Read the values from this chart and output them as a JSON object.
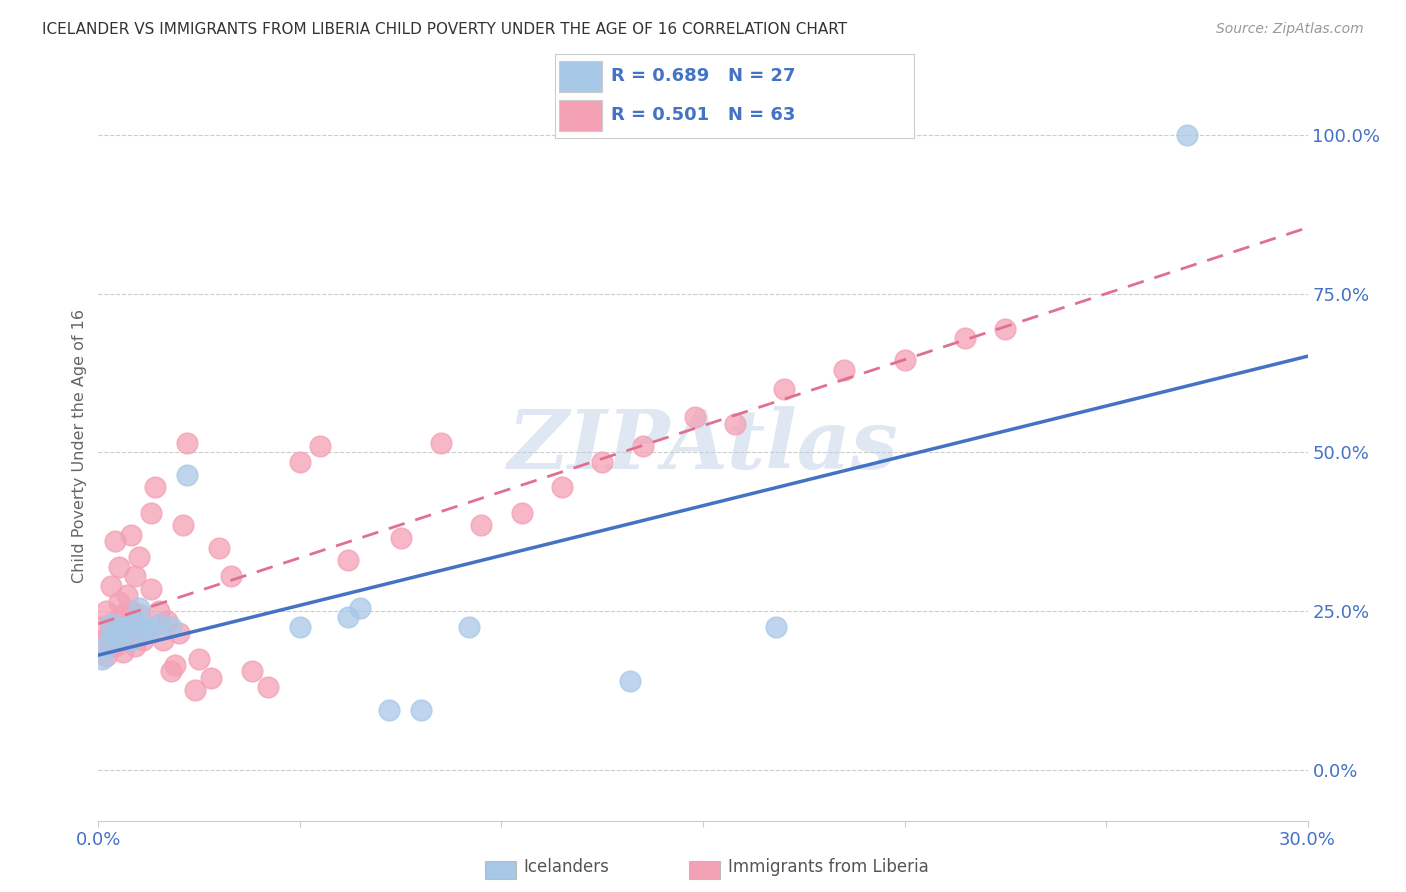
{
  "title": "ICELANDER VS IMMIGRANTS FROM LIBERIA CHILD POVERTY UNDER THE AGE OF 16 CORRELATION CHART",
  "source": "Source: ZipAtlas.com",
  "ylabel": "Child Poverty Under the Age of 16",
  "ytick_values": [
    0.0,
    0.25,
    0.5,
    0.75,
    1.0
  ],
  "ytick_labels": [
    "0.0%",
    "25.0%",
    "50.0%",
    "75.0%",
    "100.0%"
  ],
  "xlim": [
    0.0,
    0.3
  ],
  "ylim": [
    -0.08,
    1.1
  ],
  "icelander_color": "#a8c8e8",
  "liberia_color": "#f4a0b5",
  "icelander_line_color": "#4472c4",
  "liberia_line_color": "#e07090",
  "R_icelander": 0.689,
  "N_icelander": 27,
  "R_liberia": 0.501,
  "N_liberia": 63,
  "legend_label_icelanders": "Icelanders",
  "legend_label_liberia": "Immigrants from Liberia",
  "icelander_x": [
    0.001,
    0.002,
    0.003,
    0.003,
    0.004,
    0.005,
    0.005,
    0.006,
    0.007,
    0.008,
    0.009,
    0.01,
    0.011,
    0.012,
    0.013,
    0.015,
    0.018,
    0.022,
    0.05,
    0.062,
    0.065,
    0.072,
    0.08,
    0.092,
    0.132,
    0.168,
    0.27
  ],
  "icelander_y": [
    0.175,
    0.195,
    0.21,
    0.23,
    0.215,
    0.225,
    0.205,
    0.22,
    0.225,
    0.205,
    0.235,
    0.255,
    0.215,
    0.225,
    0.22,
    0.23,
    0.225,
    0.465,
    0.225,
    0.24,
    0.255,
    0.095,
    0.095,
    0.225,
    0.14,
    0.225,
    1.0
  ],
  "liberia_x": [
    0.001,
    0.001,
    0.002,
    0.002,
    0.003,
    0.003,
    0.003,
    0.004,
    0.004,
    0.004,
    0.005,
    0.005,
    0.005,
    0.005,
    0.006,
    0.006,
    0.007,
    0.007,
    0.008,
    0.008,
    0.008,
    0.009,
    0.009,
    0.01,
    0.01,
    0.01,
    0.011,
    0.012,
    0.013,
    0.013,
    0.014,
    0.015,
    0.016,
    0.017,
    0.018,
    0.019,
    0.02,
    0.021,
    0.022,
    0.024,
    0.025,
    0.028,
    0.03,
    0.033,
    0.038,
    0.042,
    0.05,
    0.055,
    0.062,
    0.075,
    0.085,
    0.095,
    0.105,
    0.115,
    0.125,
    0.135,
    0.148,
    0.158,
    0.17,
    0.185,
    0.2,
    0.215,
    0.225
  ],
  "liberia_y": [
    0.205,
    0.225,
    0.18,
    0.25,
    0.195,
    0.225,
    0.29,
    0.195,
    0.235,
    0.36,
    0.205,
    0.225,
    0.265,
    0.32,
    0.185,
    0.245,
    0.215,
    0.275,
    0.205,
    0.25,
    0.37,
    0.195,
    0.305,
    0.215,
    0.245,
    0.335,
    0.205,
    0.22,
    0.285,
    0.405,
    0.445,
    0.25,
    0.205,
    0.235,
    0.155,
    0.165,
    0.215,
    0.385,
    0.515,
    0.125,
    0.175,
    0.145,
    0.35,
    0.305,
    0.155,
    0.13,
    0.485,
    0.51,
    0.33,
    0.365,
    0.515,
    0.385,
    0.405,
    0.445,
    0.485,
    0.51,
    0.555,
    0.545,
    0.6,
    0.63,
    0.645,
    0.68,
    0.695
  ],
  "background_color": "#ffffff",
  "grid_color": "#cccccc",
  "title_color": "#333333",
  "axis_color": "#4472c4",
  "watermark": "ZIPAtlas"
}
